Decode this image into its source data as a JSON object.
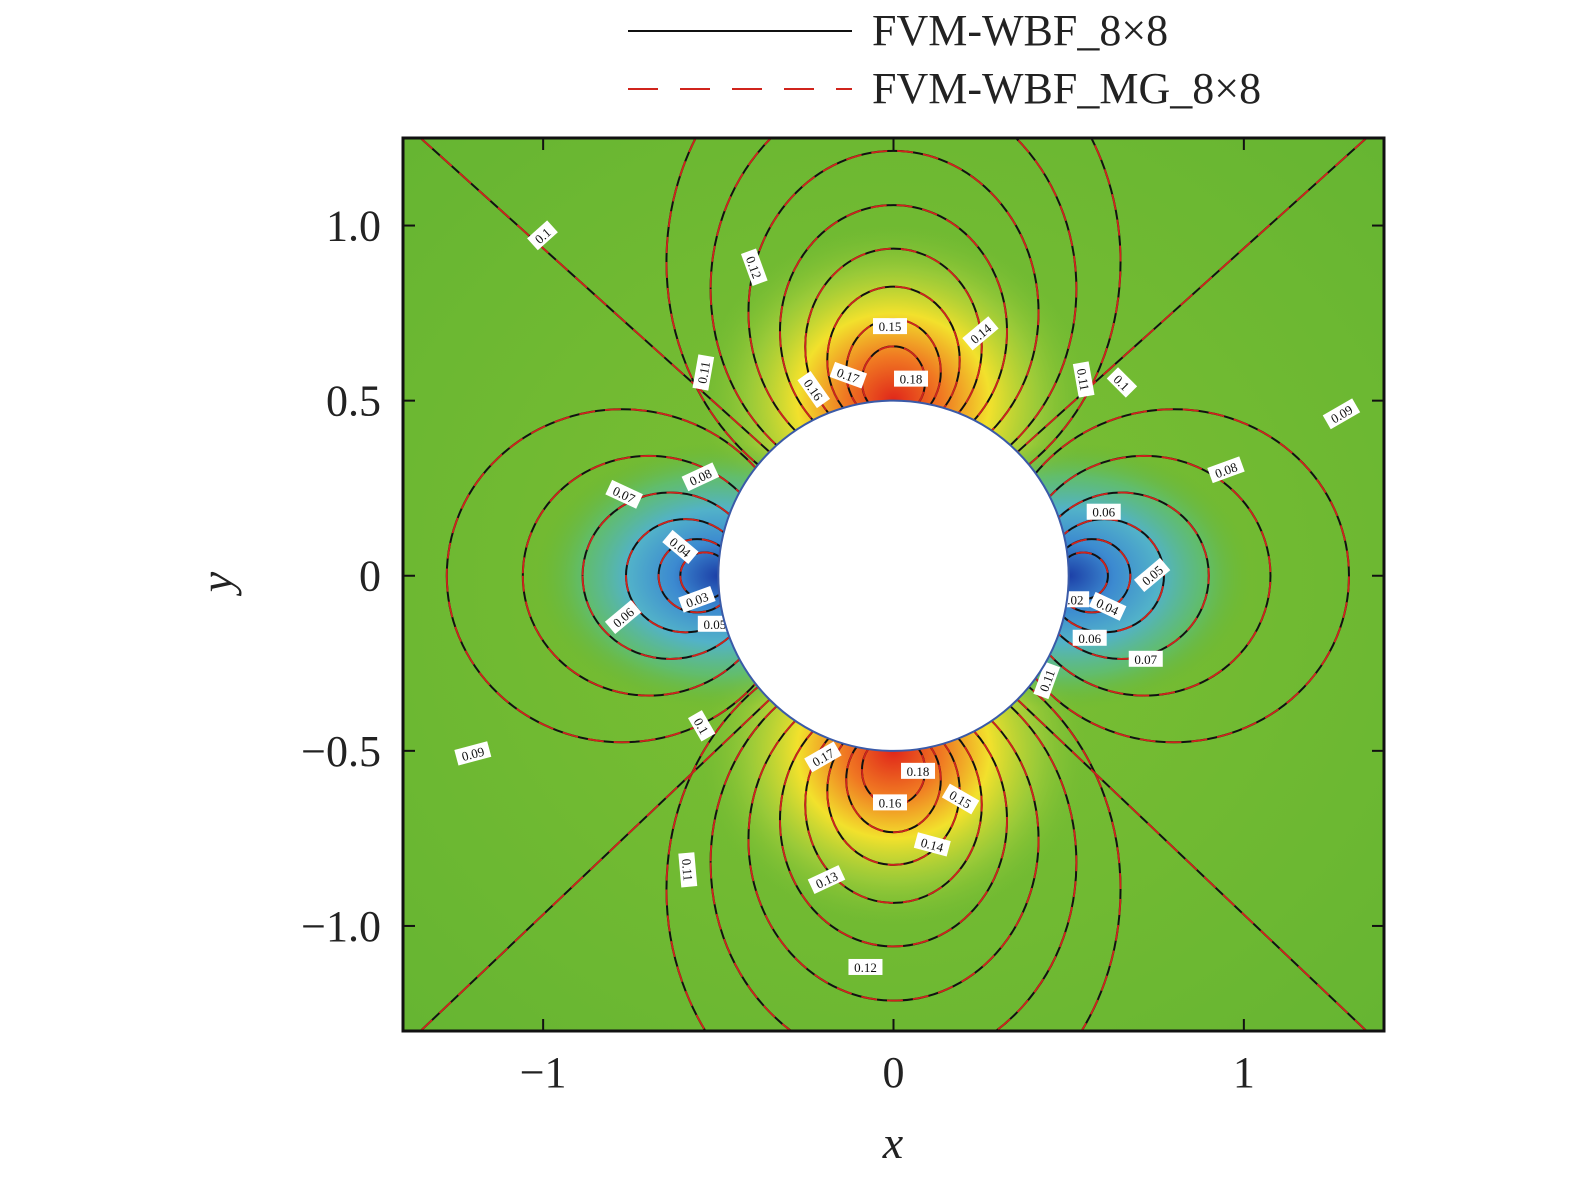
{
  "chart_data": {
    "type": "contour",
    "xlabel": "x",
    "ylabel": "y",
    "xlim": [
      -1.4,
      1.4
    ],
    "ylim": [
      -1.3,
      1.25
    ],
    "xticks": [
      -1,
      0,
      1
    ],
    "xtick_labels": [
      "−1",
      "0",
      "1"
    ],
    "yticks": [
      1.0,
      0.5,
      0,
      -0.5,
      -1.0
    ],
    "ytick_labels": [
      "1.0",
      "0.5",
      "0",
      "−0.5",
      "−1.0"
    ],
    "cylinder": {
      "center": [
        0,
        0
      ],
      "radius": 0.5
    },
    "series": [
      {
        "name": "FVM-WBF_8×8",
        "style": "solid",
        "color": "#111111"
      },
      {
        "name": "FVM-WBF_MG_8×8",
        "style": "dashed",
        "color": "#d0241c"
      }
    ],
    "levels": [
      0.02,
      0.03,
      0.04,
      0.05,
      0.06,
      0.07,
      0.08,
      0.09,
      0.1,
      0.11,
      0.12,
      0.13,
      0.14,
      0.15,
      0.16,
      0.17,
      0.18
    ],
    "contour_labels": [
      {
        "text": "0.1",
        "x": -1.0,
        "y": 0.97,
        "angle": 42
      },
      {
        "text": "0.12",
        "x": -0.4,
        "y": 0.88,
        "angle": -70
      },
      {
        "text": "0.11",
        "x": -0.54,
        "y": 0.58,
        "angle": 80
      },
      {
        "text": "0.15",
        "x": -0.01,
        "y": 0.71,
        "angle": 0
      },
      {
        "text": "0.14",
        "x": 0.25,
        "y": 0.69,
        "angle": 40
      },
      {
        "text": "0.16",
        "x": -0.23,
        "y": 0.53,
        "angle": -55
      },
      {
        "text": "0.17",
        "x": -0.13,
        "y": 0.57,
        "angle": -20
      },
      {
        "text": "0.18",
        "x": 0.05,
        "y": 0.56,
        "angle": 0
      },
      {
        "text": "0.11",
        "x": 0.54,
        "y": 0.56,
        "angle": -80
      },
      {
        "text": "0.1",
        "x": 0.65,
        "y": 0.55,
        "angle": -45
      },
      {
        "text": "0.09",
        "x": 1.28,
        "y": 0.46,
        "angle": 30
      },
      {
        "text": "0.08",
        "x": -0.55,
        "y": 0.28,
        "angle": 25
      },
      {
        "text": "0.07",
        "x": -0.77,
        "y": 0.23,
        "angle": -25
      },
      {
        "text": "0.08",
        "x": 0.95,
        "y": 0.3,
        "angle": 20
      },
      {
        "text": "0.06",
        "x": 0.6,
        "y": 0.18,
        "angle": 0
      },
      {
        "text": "0.04",
        "x": -0.61,
        "y": 0.08,
        "angle": -40
      },
      {
        "text": "0.05",
        "x": 0.74,
        "y": 0.0,
        "angle": 40
      },
      {
        "text": "0.03",
        "x": -0.56,
        "y": -0.07,
        "angle": 20
      },
      {
        "text": "0.02",
        "x": 0.51,
        "y": -0.07,
        "angle": 0
      },
      {
        "text": "0.04",
        "x": 0.61,
        "y": -0.09,
        "angle": -25
      },
      {
        "text": "0.06",
        "x": -0.77,
        "y": -0.12,
        "angle": 40
      },
      {
        "text": "0.05",
        "x": -0.51,
        "y": -0.14,
        "angle": 0
      },
      {
        "text": "0.06",
        "x": 0.56,
        "y": -0.18,
        "angle": 0
      },
      {
        "text": "0.07",
        "x": 0.72,
        "y": -0.24,
        "angle": 0
      },
      {
        "text": "0.11",
        "x": 0.44,
        "y": -0.3,
        "angle": 70
      },
      {
        "text": "0.1",
        "x": -0.55,
        "y": -0.43,
        "angle": -60
      },
      {
        "text": "0.09",
        "x": -1.2,
        "y": -0.51,
        "angle": 15
      },
      {
        "text": "0.17",
        "x": -0.2,
        "y": -0.52,
        "angle": 30
      },
      {
        "text": "0.18",
        "x": 0.07,
        "y": -0.56,
        "angle": 0
      },
      {
        "text": "0.16",
        "x": -0.01,
        "y": -0.65,
        "angle": 0
      },
      {
        "text": "0.15",
        "x": 0.19,
        "y": -0.64,
        "angle": -30
      },
      {
        "text": "0.14",
        "x": 0.11,
        "y": -0.77,
        "angle": -15
      },
      {
        "text": "0.11",
        "x": -0.59,
        "y": -0.84,
        "angle": -85
      },
      {
        "text": "0.13",
        "x": -0.19,
        "y": -0.87,
        "angle": 25
      },
      {
        "text": "0.12",
        "x": -0.08,
        "y": -1.12,
        "angle": 0
      }
    ]
  }
}
